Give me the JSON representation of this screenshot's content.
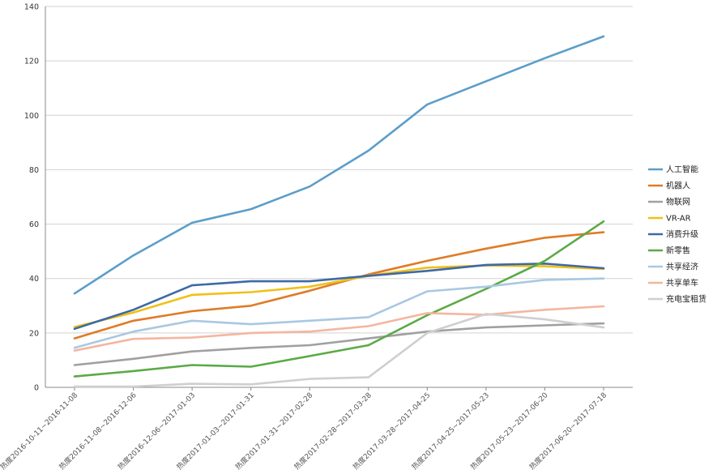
{
  "chart_data": {
    "type": "line",
    "title": "",
    "xlabel": "",
    "ylabel": "",
    "ylim": [
      0,
      140
    ],
    "yticks": [
      0,
      20,
      40,
      60,
      80,
      100,
      120,
      140
    ],
    "grid": "horizontal",
    "legend_position": "right",
    "x": [
      "热度2016-10-11~2016-11-08",
      "热度2016-11-08~2016-12-06",
      "热度2016-12-06~2017-01-03",
      "热度2017-01-03~2017-01-31",
      "热度2017-01-31~2017-02-28",
      "热度2017-02-28~2017-03-28",
      "热度2017-03-28~2017-04-25",
      "热度2017-04-25~2017-05-23",
      "热度2017-05-23~2017-06-20",
      "热度2017-06-20~2017-07-18"
    ],
    "series": [
      {
        "name": "人工智能",
        "color": "#5b9ec9",
        "values": [
          34.5,
          48.5,
          60.5,
          65.5,
          73.8,
          87,
          104,
          112.5,
          121,
          129
        ]
      },
      {
        "name": "机器人",
        "color": "#e07b27",
        "values": [
          18,
          24.5,
          28,
          30,
          35.5,
          41.5,
          46.5,
          51,
          55,
          57
        ]
      },
      {
        "name": "物联网",
        "color": "#a0a0a0",
        "values": [
          8.2,
          10.5,
          13.2,
          14.5,
          15.5,
          18,
          20.5,
          22,
          22.8,
          23.5
        ]
      },
      {
        "name": "VR-AR",
        "color": "#f0c019",
        "values": [
          22.2,
          27.5,
          34,
          35,
          37,
          41,
          44,
          44.8,
          44.5,
          43.5
        ]
      },
      {
        "name": "消费升级",
        "color": "#3d6aa6",
        "values": [
          21.5,
          28.5,
          37.5,
          39,
          39,
          41,
          42.8,
          45,
          45.5,
          43.8
        ]
      },
      {
        "name": "新零售",
        "color": "#5aaa46",
        "values": [
          4,
          6,
          8.2,
          7.6,
          11.5,
          15.5,
          26.5,
          36.2,
          46.5,
          61
        ]
      },
      {
        "name": "共享经济",
        "color": "#a9c8e2",
        "values": [
          14.5,
          20.5,
          24.5,
          23.2,
          24.5,
          25.8,
          35.3,
          37,
          39.5,
          40
        ]
      },
      {
        "name": "共享单车",
        "color": "#f5b5a0",
        "values": [
          13.5,
          17.8,
          18.3,
          20,
          20.5,
          22.5,
          27.3,
          26.7,
          28.5,
          29.8
        ]
      },
      {
        "name": "充电宝租赁",
        "color": "#cfcfcf",
        "values": [
          0.3,
          0.3,
          1.3,
          1.1,
          3.1,
          3.7,
          20,
          27,
          25,
          22
        ]
      }
    ]
  }
}
